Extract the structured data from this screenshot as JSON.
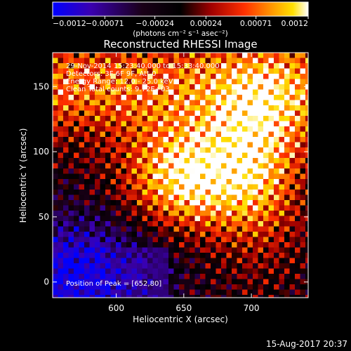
{
  "chart_data": {
    "type": "heatmap",
    "title": "Reconstructed RHESSI Image",
    "xlabel": "Heliocentric X (arcsec)",
    "ylabel": "Heliocentric Y (arcsec)",
    "xlim": [
      553,
      742
    ],
    "ylim": [
      -12,
      176
    ],
    "xticks": [
      600,
      650,
      700
    ],
    "yticks": [
      0,
      50,
      100,
      150
    ],
    "colorbar": {
      "range": [
        -0.0012,
        0.0012
      ],
      "tick_values": [
        -0.0012,
        -0.00071,
        -0.00024,
        0.00024,
        0.00071,
        0.0012
      ],
      "tick_labels": [
        "−0.0012",
        "−0.00071",
        "−0.00024",
        "0.00024",
        "0.00071",
        "0.0012"
      ],
      "unit_label": "(photons cm⁻² s⁻¹ asec⁻²)",
      "colormap": [
        "#0000ff",
        "#3a00b0",
        "#1a0018",
        "#000000",
        "#a00000",
        "#ff3000",
        "#ff9a00",
        "#ffe000",
        "#ffffff"
      ]
    },
    "annotations": [
      "29-Nov-2014 15:23:40.000 to 15:33:40.000",
      "Detectors: 3F 6F 9F, Att 0",
      "Energy Range: 12.0 - 25.0 keV",
      "Clean    Total counts: 9.72E+03"
    ],
    "peak_label": "Position of Peak = [652,80]",
    "peak_position": [
      652,
      80
    ],
    "plot_date": "15-Aug-2017 20:37"
  }
}
